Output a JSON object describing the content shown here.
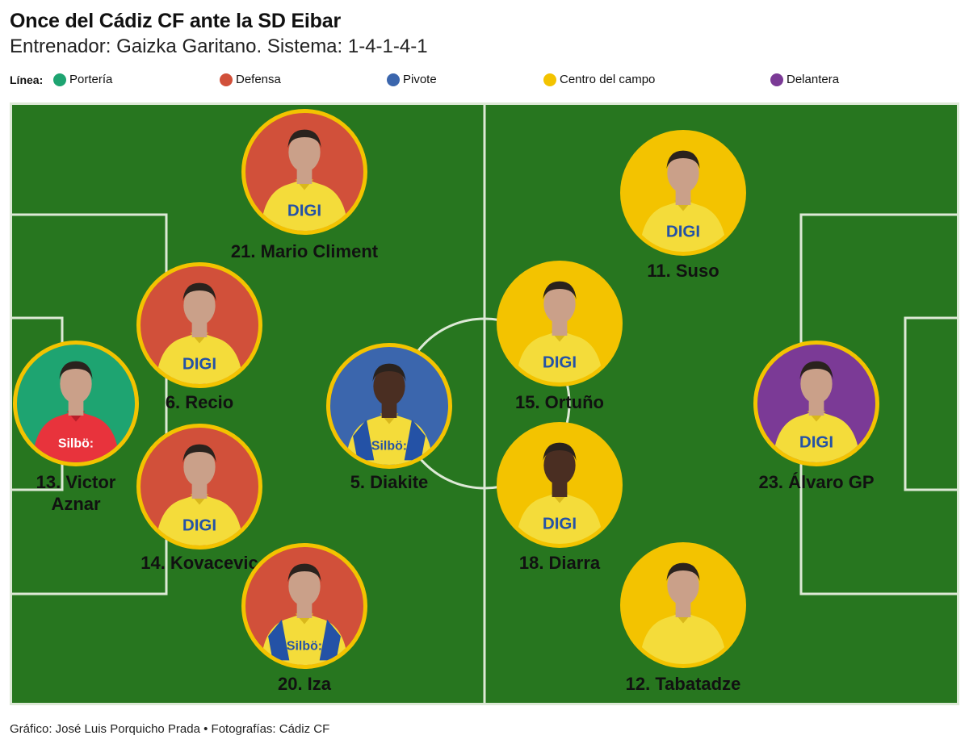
{
  "header": {
    "title": "Once del Cádiz CF ante la SD Eibar",
    "subtitle": "Entrenador: Gaizka Garitano. Sistema: 1-4-1-4-1"
  },
  "legend": {
    "label": "Línea:",
    "items": [
      {
        "label": "Portería",
        "color": "#1ea471"
      },
      {
        "label": "Defensa",
        "color": "#d1503a"
      },
      {
        "label": "Pivote",
        "color": "#3b66ad"
      },
      {
        "label": "Centro del campo",
        "color": "#f3c300"
      },
      {
        "label": "Delantera",
        "color": "#7b3a96"
      }
    ]
  },
  "colors": {
    "pitch": "#27761f",
    "lines": "#dde9d6",
    "ring": "#f3c300",
    "jersey_yellow": "#f4dc3a",
    "jersey_keeper": "#e8333c",
    "skin": "#caa089",
    "skin_dark": "#4a2e22",
    "hair": "#2a221d"
  },
  "players": [
    {
      "name": "21. Mario Climent",
      "line": "Defensa",
      "sponsor": "DIGI",
      "kit": "yellow"
    },
    {
      "name": "6. Recio",
      "line": "Defensa",
      "sponsor": "DIGI",
      "kit": "yellow"
    },
    {
      "name": "13. Victor\nAznar",
      "line": "Portería",
      "sponsor": "Silbö:",
      "kit": "keeper"
    },
    {
      "name": "14. Kovacevic",
      "line": "Defensa",
      "sponsor": "DIGI",
      "kit": "yellow"
    },
    {
      "name": "20. Iza",
      "line": "Defensa",
      "sponsor": "Silbö:",
      "kit": "yellow-blue"
    },
    {
      "name": "5. Diakite",
      "line": "Pivote",
      "sponsor": "Silbö:",
      "kit": "yellow-blue"
    },
    {
      "name": "11. Suso",
      "line": "Centro del campo",
      "sponsor": "DIGI",
      "kit": "yellow"
    },
    {
      "name": "15. Ortuño",
      "line": "Centro del campo",
      "sponsor": "DIGI",
      "kit": "yellow"
    },
    {
      "name": "18. Diarra",
      "line": "Centro del campo",
      "sponsor": "DIGI",
      "kit": "yellow"
    },
    {
      "name": "12. Tabatadze",
      "line": "Centro del campo",
      "sponsor": "",
      "kit": "yellow"
    },
    {
      "name": "23. Álvaro GP",
      "line": "Delantera",
      "sponsor": "DIGI",
      "kit": "yellow"
    }
  ],
  "footer": "Gráfico: José Luis Porquicho Prada • Fotografías: Cádiz CF"
}
